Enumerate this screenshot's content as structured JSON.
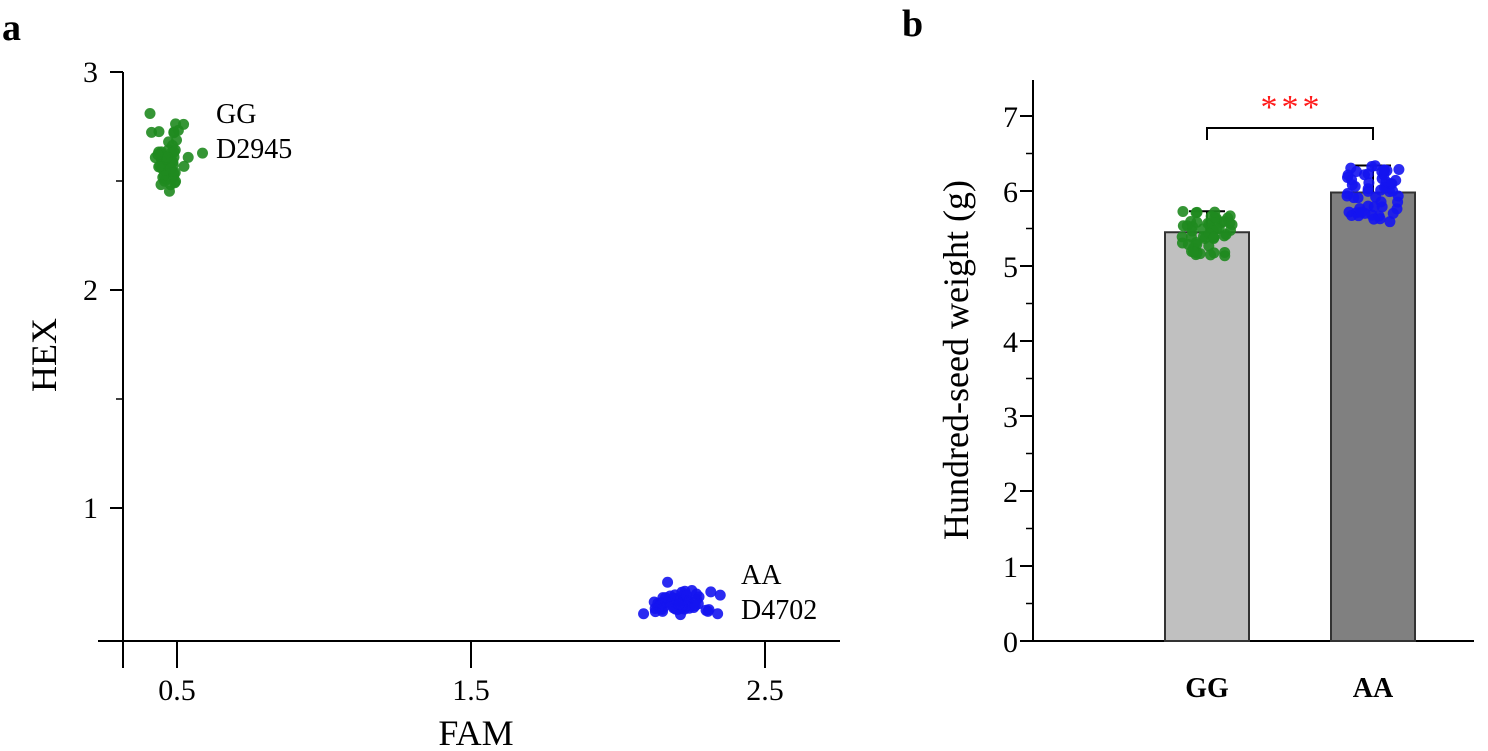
{
  "panels": {
    "a": "a",
    "b": "b"
  },
  "colors": {
    "gg": "#1f8a1f",
    "aa": "#1414f0",
    "bar_gg": "#c0c0c0",
    "bar_aa": "#808080",
    "significance": "#ff1a1a"
  },
  "chart_data": [
    {
      "type": "scatter",
      "xlabel": "FAM",
      "ylabel": "HEX",
      "xticks": [
        "0.5",
        "1.5",
        "2.5"
      ],
      "yticks": [
        "1",
        "2",
        "3"
      ],
      "xlim": [
        0.3,
        2.8
      ],
      "ylim": [
        0.4,
        3.0
      ],
      "clusters": [
        {
          "name": "GG",
          "label2": "D2945",
          "color": "#1f8a1f",
          "center": [
            0.47,
            2.6
          ],
          "spread": [
            0.05,
            0.12
          ],
          "n": 60
        },
        {
          "name": "AA",
          "label2": "D4702",
          "color": "#1414f0",
          "center": [
            2.2,
            0.56
          ],
          "spread": [
            0.1,
            0.05
          ],
          "n": 70
        }
      ]
    },
    {
      "type": "bar",
      "ylabel": "Hundred-seed weight (g)",
      "categories": [
        "GG",
        "AA"
      ],
      "values": [
        5.45,
        5.98
      ],
      "error_upper": [
        5.73,
        6.34
      ],
      "ylim": [
        0,
        7.5
      ],
      "yticks": [
        "0",
        "1",
        "2",
        "3",
        "4",
        "5",
        "6",
        "7"
      ],
      "significance": "***",
      "jitter_range": [
        [
          5.12,
          5.73
        ],
        [
          5.58,
          6.34
        ]
      ]
    }
  ]
}
